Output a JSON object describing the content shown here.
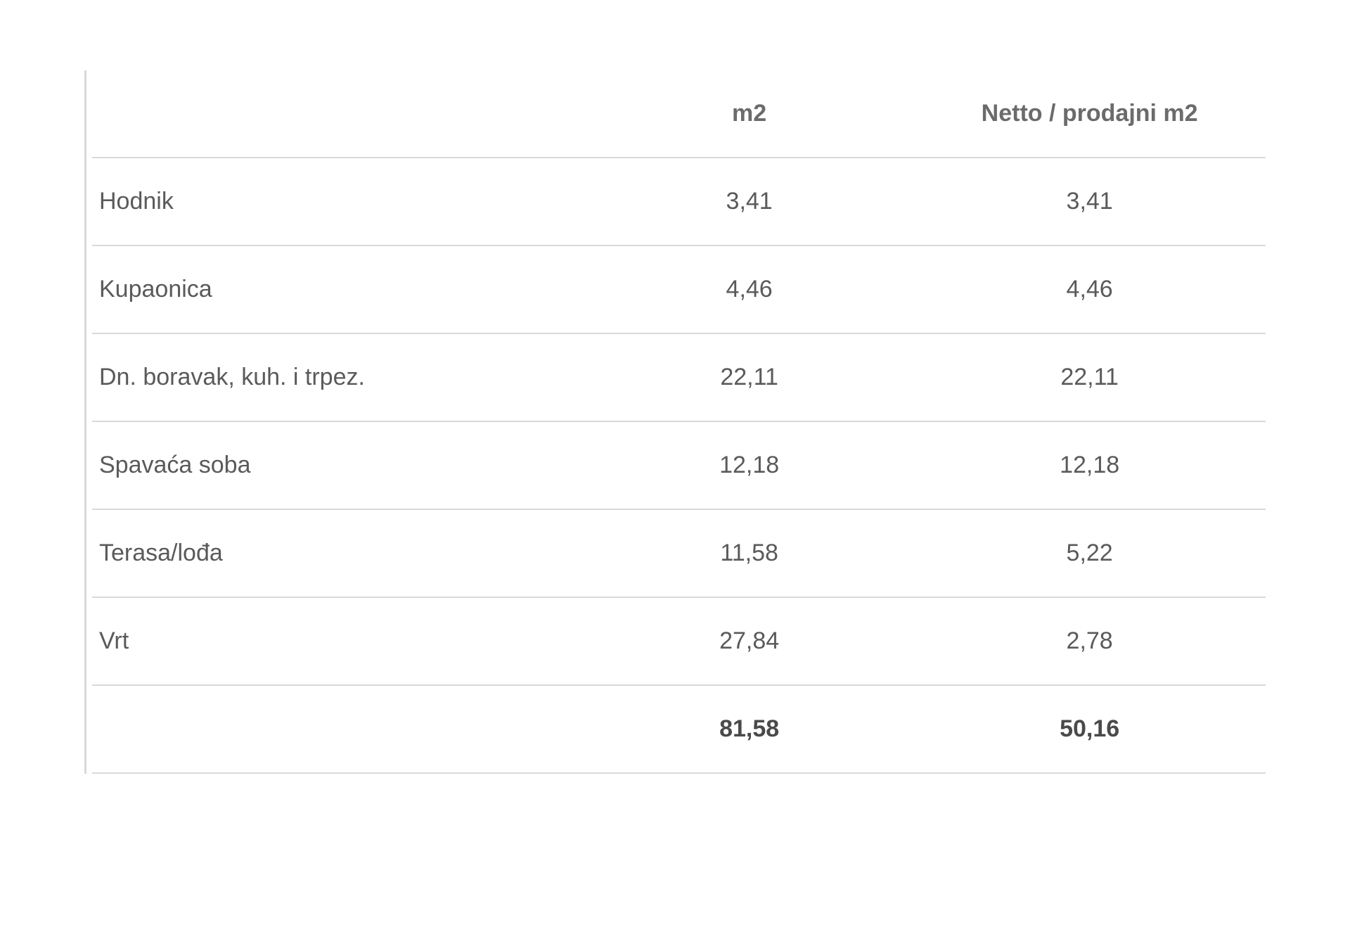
{
  "table": {
    "type": "table",
    "background_color": "#ffffff",
    "border_color": "#d9d9d9",
    "header_text_color": "#6b6b6b",
    "body_text_color": "#5a5a5a",
    "totals_text_color": "#4a4a4a",
    "font_size": 34,
    "columns": [
      {
        "key": "label",
        "header": "",
        "align": "left",
        "width": "42%"
      },
      {
        "key": "m2",
        "header": "m2",
        "align": "center",
        "width": "28%"
      },
      {
        "key": "netto",
        "header": "Netto / prodajni m2",
        "align": "center",
        "width": "30%"
      }
    ],
    "rows": [
      {
        "label": "Hodnik",
        "m2": "3,41",
        "netto": "3,41"
      },
      {
        "label": "Kupaonica",
        "m2": "4,46",
        "netto": "4,46"
      },
      {
        "label": "Dn. boravak, kuh. i trpez.",
        "m2": "22,11",
        "netto": "22,11"
      },
      {
        "label": "Spavaća soba",
        "m2": "12,18",
        "netto": "12,18"
      },
      {
        "label": "Terasa/lođa",
        "m2": "11,58",
        "netto": "5,22"
      },
      {
        "label": "Vrt",
        "m2": "27,84",
        "netto": "2,78"
      }
    ],
    "totals": {
      "label": "",
      "m2": "81,58",
      "netto": "50,16"
    }
  }
}
